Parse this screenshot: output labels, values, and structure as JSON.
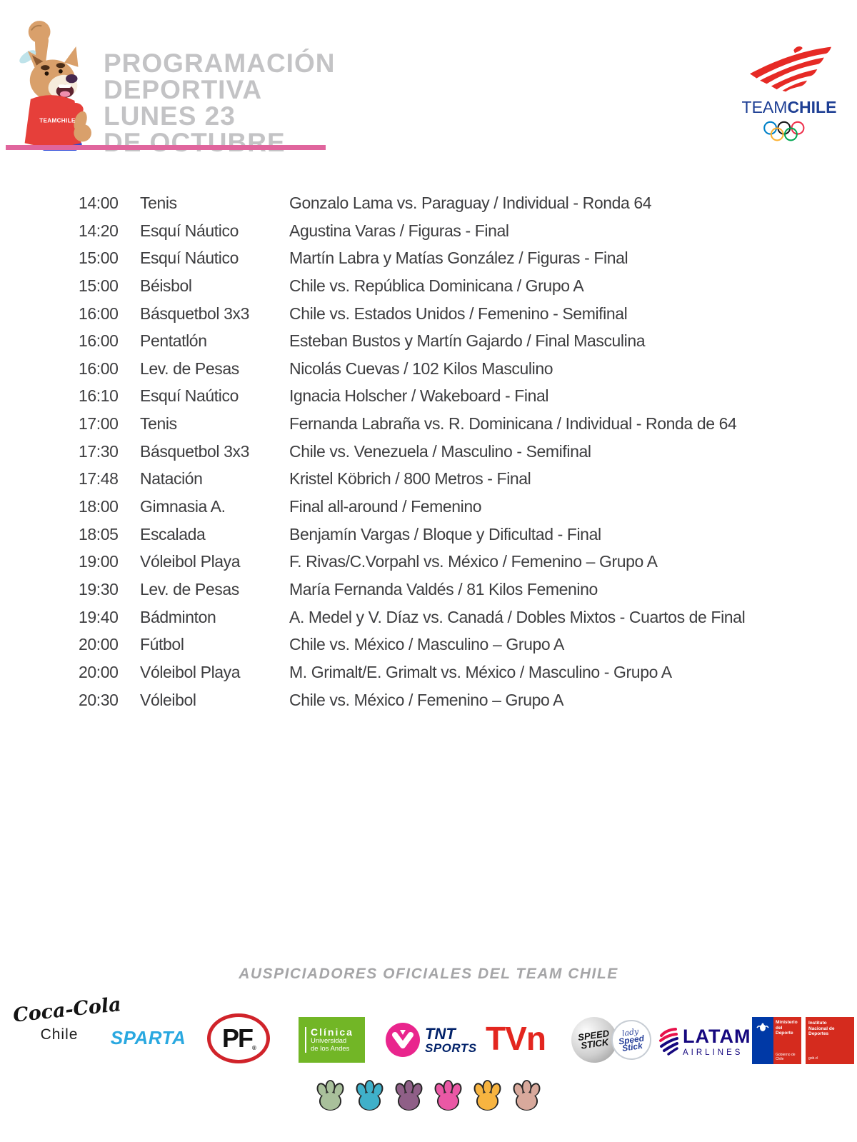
{
  "header": {
    "title_lines": [
      "PROGRAMACIÓN",
      "DEPORTIVA",
      "LUNES 23",
      "DE OCTUBRE"
    ],
    "logo": {
      "team": "TEAM",
      "chile": "CHILE"
    },
    "mascot_shirt_label": "TEAMCHILE"
  },
  "schedule": {
    "rows": [
      {
        "time": "14:00",
        "sport": "Tenis",
        "detail": "Gonzalo Lama vs. Paraguay / Individual - Ronda 64"
      },
      {
        "time": "14:20",
        "sport": "Esquí Náutico",
        "detail": "Agustina Varas / Figuras - Final"
      },
      {
        "time": "15:00",
        "sport": "Esquí Náutico",
        "detail": "Martín Labra y Matías González / Figuras - Final"
      },
      {
        "time": "15:00",
        "sport": "Béisbol",
        "detail": "Chile vs. República Dominicana / Grupo A"
      },
      {
        "time": "16:00",
        "sport": "Básquetbol 3x3",
        "detail": "Chile vs. Estados Unidos / Femenino - Semifinal"
      },
      {
        "time": "16:00",
        "sport": "Pentatlón",
        "detail": "Esteban Bustos y Martín Gajardo / Final Masculina"
      },
      {
        "time": "16:00",
        "sport": "Lev. de Pesas",
        "detail": "Nicolás Cuevas / 102 Kilos Masculino"
      },
      {
        "time": "16:10",
        "sport": "Esquí Naútico",
        "detail": "Ignacia Holscher / Wakeboard - Final"
      },
      {
        "time": "17:00",
        "sport": "Tenis",
        "detail": "Fernanda Labraña vs. R. Dominicana / Individual - Ronda de 64"
      },
      {
        "time": "17:30",
        "sport": "Básquetbol 3x3",
        "detail": "Chile vs. Venezuela / Masculino - Semifinal"
      },
      {
        "time": "17:48",
        "sport": "Natación",
        "detail": "Kristel Köbrich / 800 Metros - Final"
      },
      {
        "time": "18:00",
        "sport": "Gimnasia A.",
        "detail": "Final all-around / Femenino"
      },
      {
        "time": "18:05",
        "sport": "Escalada",
        "detail": "Benjamín Vargas / Bloque y Dificultad - Final"
      },
      {
        "time": "19:00",
        "sport": "Vóleibol Playa",
        "detail": "F. Rivas/C.Vorpahl vs. México / Femenino – Grupo A"
      },
      {
        "time": "19:30",
        "sport": "Lev. de Pesas",
        "detail": "María Fernanda Valdés / 81 Kilos Femenino"
      },
      {
        "time": "19:40",
        "sport": "Bádminton",
        "detail": "A. Medel y V. Díaz vs. Canadá / Dobles Mixtos - Cuartos de Final"
      },
      {
        "time": "20:00",
        "sport": "Fútbol",
        "detail": "Chile vs. México / Masculino – Grupo A"
      },
      {
        "time": "20:00",
        "sport": "Vóleibol Playa",
        "detail": "M. Grimalt/E. Grimalt vs. México / Masculino - Grupo A"
      },
      {
        "time": "20:30",
        "sport": "Vóleibol",
        "detail": "Chile vs. México / Femenino – Grupo A"
      }
    ]
  },
  "sponsors": {
    "heading": "AUSPICIADORES OFICIALES DEL TEAM CHILE",
    "coca_cola": {
      "script": "Coca-Cola",
      "sub": "Chile"
    },
    "sparta": {
      "label": "SPARTA"
    },
    "pf": {
      "label": "PF",
      "reg": "®"
    },
    "clinica": {
      "line1": "Clínica",
      "line2": "Universidad",
      "line3": "de los Andes"
    },
    "tnt": {
      "line1": "TNT",
      "line2": "SPORTS"
    },
    "tvn": {
      "label": "TVn"
    },
    "speed_stick": {
      "line1": "SPEED",
      "line2": "STICK",
      "lady1": "lady",
      "lady2": "Speed",
      "lady3": "Stick"
    },
    "latam": {
      "name": "LATAM",
      "sub": "AIRLINES"
    },
    "gov1": {
      "line1": "Ministerio del",
      "line2": "Deporte",
      "bottom": "Gobierno de Chile"
    },
    "gov2": {
      "line1": "Instituto",
      "line2": "Nacional de",
      "line3": "Deportes",
      "bottom": "gob.cl"
    }
  },
  "paw_colors": [
    "#a9c09b",
    "#3fb0c9",
    "#8f5f87",
    "#ea58a5",
    "#f7b440",
    "#d8a99c"
  ],
  "colors": {
    "accent_pink": "#e0659d",
    "title_gray": "#c3c3c5",
    "text": "#3d3d3f",
    "team_chile_red": "#e62a25",
    "team_chile_navy": "#1e3f94"
  }
}
